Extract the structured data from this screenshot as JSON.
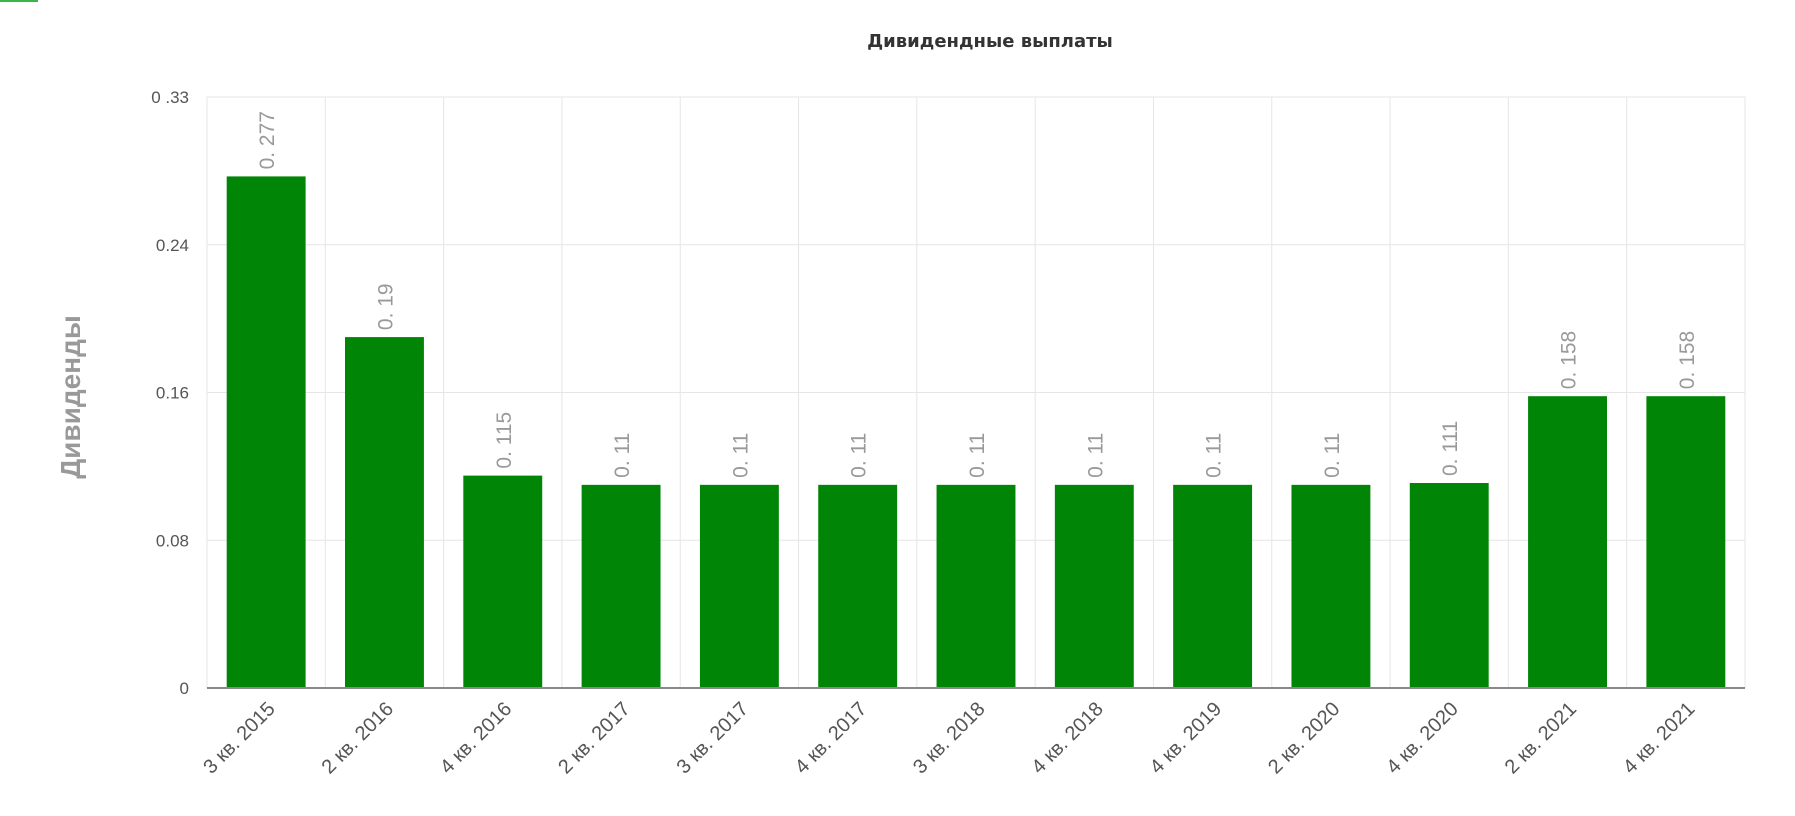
{
  "chart_data": {
    "type": "bar",
    "title": "Дивидендные выплаты",
    "ylabel": "Дивиденды",
    "xlabel": "",
    "categories": [
      "3 кв. 2015",
      "2 кв. 2016",
      "4 кв. 2016",
      "2 кв. 2017",
      "3 кв. 2017",
      "4 кв. 2017",
      "3 кв. 2018",
      "4 кв. 2018",
      "4 кв. 2019",
      "2 кв. 2020",
      "4 кв. 2020",
      "2 кв. 2021",
      "4 кв. 2021"
    ],
    "values": [
      0.277,
      0.19,
      0.115,
      0.11,
      0.11,
      0.11,
      0.11,
      0.11,
      0.11,
      0.11,
      0.111,
      0.158,
      0.158
    ],
    "data_labels": [
      "0. 277",
      "0. 19",
      "0. 115",
      "0. 11",
      "0. 11",
      "0. 11",
      "0. 11",
      "0. 11",
      "0. 11",
      "0. 11",
      "0. 111",
      "0. 158",
      "0. 158"
    ],
    "yticks": [
      0,
      0.08,
      0.16,
      0.24,
      0.33
    ],
    "ytick_labels": [
      "0",
      "0.08",
      "0.16",
      "0.24",
      "0 .33"
    ],
    "ylim": [
      0,
      0.32
    ],
    "grid": true,
    "bar_color": "#008506"
  }
}
